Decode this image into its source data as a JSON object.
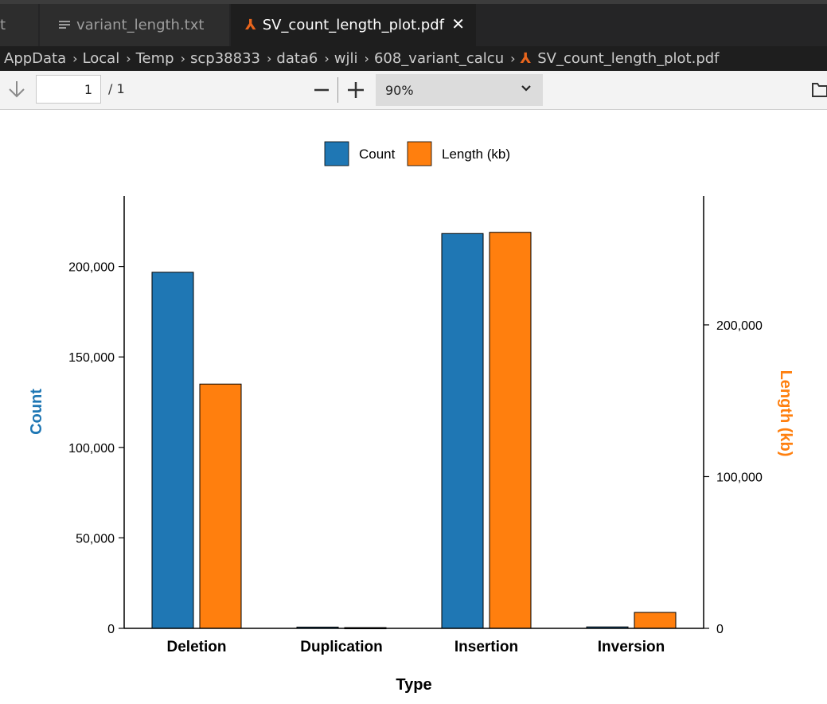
{
  "tabs": [
    {
      "label": "t"
    },
    {
      "label": "variant_length.txt"
    },
    {
      "label": "SV_count_length_plot.pdf",
      "close": "✕"
    }
  ],
  "breadcrumb": [
    "AppData",
    "Local",
    "Temp",
    "scp38833",
    "data6",
    "wjli",
    "608_variant_calcu",
    "SV_count_length_plot.pdf"
  ],
  "toolbar": {
    "page_value": "1",
    "page_total": "/ 1",
    "zoom": "90%"
  },
  "colors": {
    "count": "#1f77b4",
    "length": "#ff7f0e"
  },
  "chart_data": {
    "type": "bar",
    "categories": [
      "Deletion",
      "Duplication",
      "Insertion",
      "Inversion"
    ],
    "series": [
      {
        "name": "Count",
        "axis": "left",
        "values": [
          196800,
          700,
          218200,
          800
        ]
      },
      {
        "name": "Length (kb)",
        "axis": "right",
        "values": [
          161000,
          500,
          261000,
          10500
        ]
      }
    ],
    "xlabel": "Type",
    "ylabel": "Count",
    "ylabel_right": "Length (kb)",
    "ylim": [
      0,
      239000
    ],
    "ylim_right": [
      0,
      285000
    ],
    "yticks": [
      0,
      50000,
      100000,
      150000,
      200000
    ],
    "yticks_right": [
      0,
      100000,
      200000
    ],
    "ytick_labels": [
      "0",
      "50,000",
      "100,000",
      "150,000",
      "200,000"
    ],
    "ytick_labels_right": [
      "0",
      "100,000",
      "200,000"
    ],
    "legend": "top-center",
    "grid": false
  }
}
